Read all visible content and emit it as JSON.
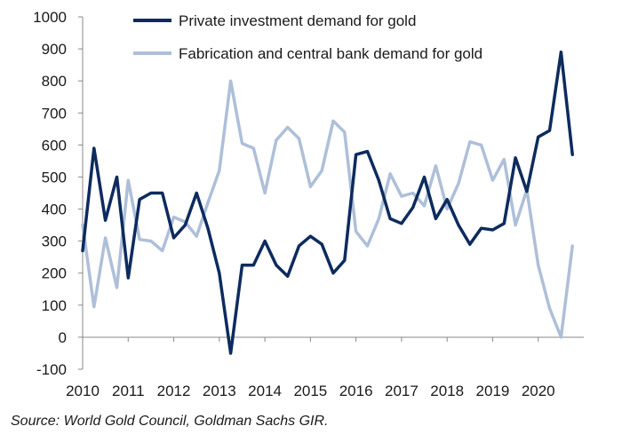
{
  "chart_data": {
    "type": "line",
    "x_ticks": [
      "2010",
      "2011",
      "2012",
      "2013",
      "2014",
      "2015",
      "2016",
      "2017",
      "2018",
      "2019",
      "2020"
    ],
    "x_range": [
      2010,
      2021
    ],
    "y_ticks": [
      1000,
      900,
      800,
      700,
      600,
      500,
      400,
      300,
      200,
      100,
      0,
      -100
    ],
    "ylim": [
      -100,
      1000
    ],
    "grid": false,
    "legend_position": "top",
    "source": "Source: World Gold Council, Goldman Sachs GIR.",
    "series": [
      {
        "name": "Private investment demand for gold",
        "color": "#0d2b5e",
        "x": [
          2010.0,
          2010.25,
          2010.5,
          2010.75,
          2011.0,
          2011.25,
          2011.5,
          2011.75,
          2012.0,
          2012.25,
          2012.5,
          2012.75,
          2013.0,
          2013.25,
          2013.5,
          2013.75,
          2014.0,
          2014.25,
          2014.5,
          2014.75,
          2015.0,
          2015.25,
          2015.5,
          2015.75,
          2016.0,
          2016.25,
          2016.5,
          2016.75,
          2017.0,
          2017.25,
          2017.5,
          2017.75,
          2018.0,
          2018.25,
          2018.5,
          2018.75,
          2019.0,
          2019.25,
          2019.5,
          2019.75,
          2020.0,
          2020.25,
          2020.5,
          2020.75
        ],
        "y": [
          270,
          590,
          365,
          500,
          185,
          430,
          450,
          450,
          310,
          350,
          450,
          340,
          200,
          -50,
          225,
          225,
          300,
          225,
          190,
          285,
          315,
          290,
          200,
          240,
          570,
          580,
          490,
          370,
          355,
          405,
          500,
          370,
          430,
          350,
          290,
          340,
          335,
          355,
          560,
          455,
          625,
          645,
          890,
          570
        ]
      },
      {
        "name": "Fabrication and central bank demand for gold",
        "color": "#aebfd8",
        "x": [
          2010.0,
          2010.25,
          2010.5,
          2010.75,
          2011.0,
          2011.25,
          2011.5,
          2011.75,
          2012.0,
          2012.25,
          2012.5,
          2012.75,
          2013.0,
          2013.25,
          2013.5,
          2013.75,
          2014.0,
          2014.25,
          2014.5,
          2014.75,
          2015.0,
          2015.25,
          2015.5,
          2015.75,
          2016.0,
          2016.25,
          2016.5,
          2016.75,
          2017.0,
          2017.25,
          2017.5,
          2017.75,
          2018.0,
          2018.25,
          2018.5,
          2018.75,
          2019.0,
          2019.25,
          2019.5,
          2019.75,
          2020.0,
          2020.25,
          2020.5,
          2020.75
        ],
        "y": [
          350,
          95,
          310,
          155,
          490,
          305,
          300,
          270,
          375,
          360,
          315,
          420,
          520,
          800,
          605,
          590,
          450,
          615,
          655,
          620,
          470,
          520,
          675,
          640,
          330,
          285,
          370,
          510,
          440,
          450,
          410,
          535,
          400,
          480,
          610,
          600,
          490,
          555,
          350,
          460,
          225,
          90,
          0,
          285
        ]
      }
    ]
  }
}
